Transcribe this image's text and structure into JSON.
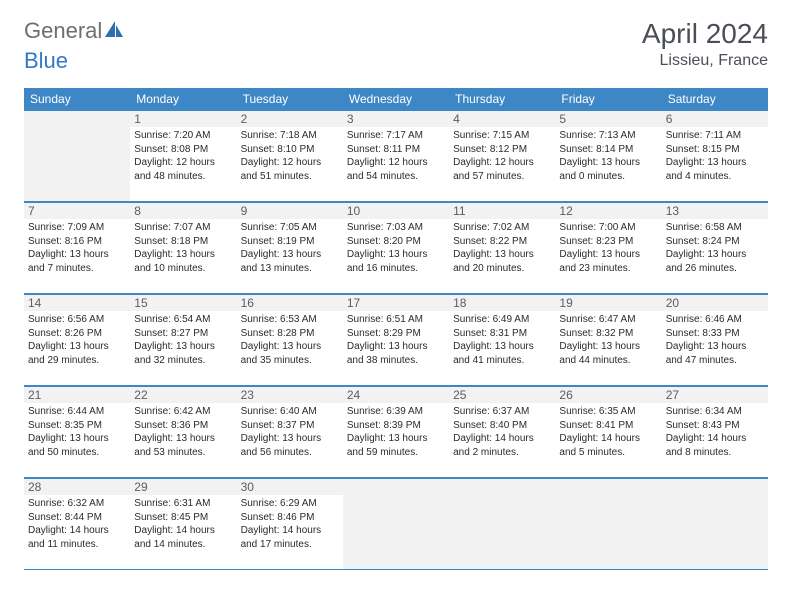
{
  "logo": {
    "word1": "General",
    "word2": "Blue"
  },
  "title": "April 2024",
  "location": "Lissieu, France",
  "colors": {
    "header_bg": "#3d87c7",
    "accent": "#3278c6",
    "gray_bg": "#f2f2f2",
    "page_bg": "#ffffff",
    "text": "#2b2b2b",
    "logo_gray": "#6d6e71"
  },
  "day_headers": [
    "Sunday",
    "Monday",
    "Tuesday",
    "Wednesday",
    "Thursday",
    "Friday",
    "Saturday"
  ],
  "weeks": [
    [
      {
        "empty": true
      },
      {
        "n": "1",
        "sunrise": "Sunrise: 7:20 AM",
        "sunset": "Sunset: 8:08 PM",
        "d1": "Daylight: 12 hours",
        "d2": "and 48 minutes."
      },
      {
        "n": "2",
        "sunrise": "Sunrise: 7:18 AM",
        "sunset": "Sunset: 8:10 PM",
        "d1": "Daylight: 12 hours",
        "d2": "and 51 minutes."
      },
      {
        "n": "3",
        "sunrise": "Sunrise: 7:17 AM",
        "sunset": "Sunset: 8:11 PM",
        "d1": "Daylight: 12 hours",
        "d2": "and 54 minutes."
      },
      {
        "n": "4",
        "sunrise": "Sunrise: 7:15 AM",
        "sunset": "Sunset: 8:12 PM",
        "d1": "Daylight: 12 hours",
        "d2": "and 57 minutes."
      },
      {
        "n": "5",
        "sunrise": "Sunrise: 7:13 AM",
        "sunset": "Sunset: 8:14 PM",
        "d1": "Daylight: 13 hours",
        "d2": "and 0 minutes."
      },
      {
        "n": "6",
        "sunrise": "Sunrise: 7:11 AM",
        "sunset": "Sunset: 8:15 PM",
        "d1": "Daylight: 13 hours",
        "d2": "and 4 minutes."
      }
    ],
    [
      {
        "n": "7",
        "sunrise": "Sunrise: 7:09 AM",
        "sunset": "Sunset: 8:16 PM",
        "d1": "Daylight: 13 hours",
        "d2": "and 7 minutes."
      },
      {
        "n": "8",
        "sunrise": "Sunrise: 7:07 AM",
        "sunset": "Sunset: 8:18 PM",
        "d1": "Daylight: 13 hours",
        "d2": "and 10 minutes."
      },
      {
        "n": "9",
        "sunrise": "Sunrise: 7:05 AM",
        "sunset": "Sunset: 8:19 PM",
        "d1": "Daylight: 13 hours",
        "d2": "and 13 minutes."
      },
      {
        "n": "10",
        "sunrise": "Sunrise: 7:03 AM",
        "sunset": "Sunset: 8:20 PM",
        "d1": "Daylight: 13 hours",
        "d2": "and 16 minutes."
      },
      {
        "n": "11",
        "sunrise": "Sunrise: 7:02 AM",
        "sunset": "Sunset: 8:22 PM",
        "d1": "Daylight: 13 hours",
        "d2": "and 20 minutes."
      },
      {
        "n": "12",
        "sunrise": "Sunrise: 7:00 AM",
        "sunset": "Sunset: 8:23 PM",
        "d1": "Daylight: 13 hours",
        "d2": "and 23 minutes."
      },
      {
        "n": "13",
        "sunrise": "Sunrise: 6:58 AM",
        "sunset": "Sunset: 8:24 PM",
        "d1": "Daylight: 13 hours",
        "d2": "and 26 minutes."
      }
    ],
    [
      {
        "n": "14",
        "sunrise": "Sunrise: 6:56 AM",
        "sunset": "Sunset: 8:26 PM",
        "d1": "Daylight: 13 hours",
        "d2": "and 29 minutes."
      },
      {
        "n": "15",
        "sunrise": "Sunrise: 6:54 AM",
        "sunset": "Sunset: 8:27 PM",
        "d1": "Daylight: 13 hours",
        "d2": "and 32 minutes."
      },
      {
        "n": "16",
        "sunrise": "Sunrise: 6:53 AM",
        "sunset": "Sunset: 8:28 PM",
        "d1": "Daylight: 13 hours",
        "d2": "and 35 minutes."
      },
      {
        "n": "17",
        "sunrise": "Sunrise: 6:51 AM",
        "sunset": "Sunset: 8:29 PM",
        "d1": "Daylight: 13 hours",
        "d2": "and 38 minutes."
      },
      {
        "n": "18",
        "sunrise": "Sunrise: 6:49 AM",
        "sunset": "Sunset: 8:31 PM",
        "d1": "Daylight: 13 hours",
        "d2": "and 41 minutes."
      },
      {
        "n": "19",
        "sunrise": "Sunrise: 6:47 AM",
        "sunset": "Sunset: 8:32 PM",
        "d1": "Daylight: 13 hours",
        "d2": "and 44 minutes."
      },
      {
        "n": "20",
        "sunrise": "Sunrise: 6:46 AM",
        "sunset": "Sunset: 8:33 PM",
        "d1": "Daylight: 13 hours",
        "d2": "and 47 minutes."
      }
    ],
    [
      {
        "n": "21",
        "sunrise": "Sunrise: 6:44 AM",
        "sunset": "Sunset: 8:35 PM",
        "d1": "Daylight: 13 hours",
        "d2": "and 50 minutes."
      },
      {
        "n": "22",
        "sunrise": "Sunrise: 6:42 AM",
        "sunset": "Sunset: 8:36 PM",
        "d1": "Daylight: 13 hours",
        "d2": "and 53 minutes."
      },
      {
        "n": "23",
        "sunrise": "Sunrise: 6:40 AM",
        "sunset": "Sunset: 8:37 PM",
        "d1": "Daylight: 13 hours",
        "d2": "and 56 minutes."
      },
      {
        "n": "24",
        "sunrise": "Sunrise: 6:39 AM",
        "sunset": "Sunset: 8:39 PM",
        "d1": "Daylight: 13 hours",
        "d2": "and 59 minutes."
      },
      {
        "n": "25",
        "sunrise": "Sunrise: 6:37 AM",
        "sunset": "Sunset: 8:40 PM",
        "d1": "Daylight: 14 hours",
        "d2": "and 2 minutes."
      },
      {
        "n": "26",
        "sunrise": "Sunrise: 6:35 AM",
        "sunset": "Sunset: 8:41 PM",
        "d1": "Daylight: 14 hours",
        "d2": "and 5 minutes."
      },
      {
        "n": "27",
        "sunrise": "Sunrise: 6:34 AM",
        "sunset": "Sunset: 8:43 PM",
        "d1": "Daylight: 14 hours",
        "d2": "and 8 minutes."
      }
    ],
    [
      {
        "n": "28",
        "sunrise": "Sunrise: 6:32 AM",
        "sunset": "Sunset: 8:44 PM",
        "d1": "Daylight: 14 hours",
        "d2": "and 11 minutes."
      },
      {
        "n": "29",
        "sunrise": "Sunrise: 6:31 AM",
        "sunset": "Sunset: 8:45 PM",
        "d1": "Daylight: 14 hours",
        "d2": "and 14 minutes."
      },
      {
        "n": "30",
        "sunrise": "Sunrise: 6:29 AM",
        "sunset": "Sunset: 8:46 PM",
        "d1": "Daylight: 14 hours",
        "d2": "and 17 minutes."
      },
      {
        "empty": true
      },
      {
        "empty": true
      },
      {
        "empty": true
      },
      {
        "empty": true
      }
    ]
  ]
}
